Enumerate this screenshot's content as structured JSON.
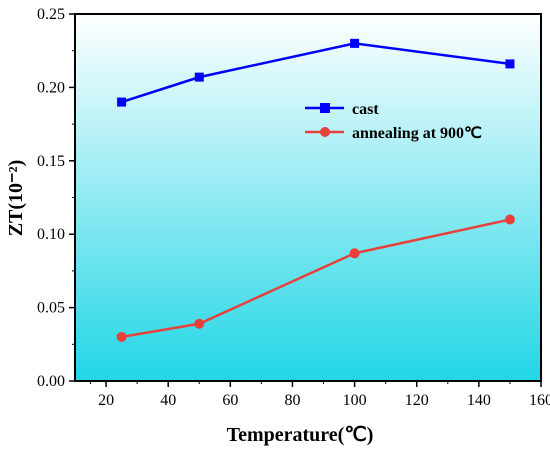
{
  "chart_data": {
    "type": "line",
    "xlabel": "Temperature(℃)",
    "ylabel": "ZT(10⁻²)",
    "xlim": [
      10,
      160
    ],
    "ylim": [
      0.0,
      0.25
    ],
    "x_ticks": [
      "20",
      "40",
      "60",
      "80",
      "100",
      "120",
      "140",
      "160"
    ],
    "y_ticks": [
      "0.00",
      "0.05",
      "0.10",
      "0.15",
      "0.20",
      "0.25"
    ],
    "grid": false,
    "legend_position": "upper-right",
    "background": "gradient white (top) to cyan (bottom)",
    "series": [
      {
        "name": "cast",
        "color": "#0000ff",
        "marker": "square",
        "x": [
          25,
          50,
          100,
          150
        ],
        "y": [
          0.19,
          0.207,
          0.23,
          0.216
        ]
      },
      {
        "name": "annealing at 900℃",
        "color": "#e8403a",
        "marker": "circle",
        "x": [
          25,
          50,
          100,
          150
        ],
        "y": [
          0.03,
          0.039,
          0.087,
          0.11
        ]
      }
    ]
  }
}
